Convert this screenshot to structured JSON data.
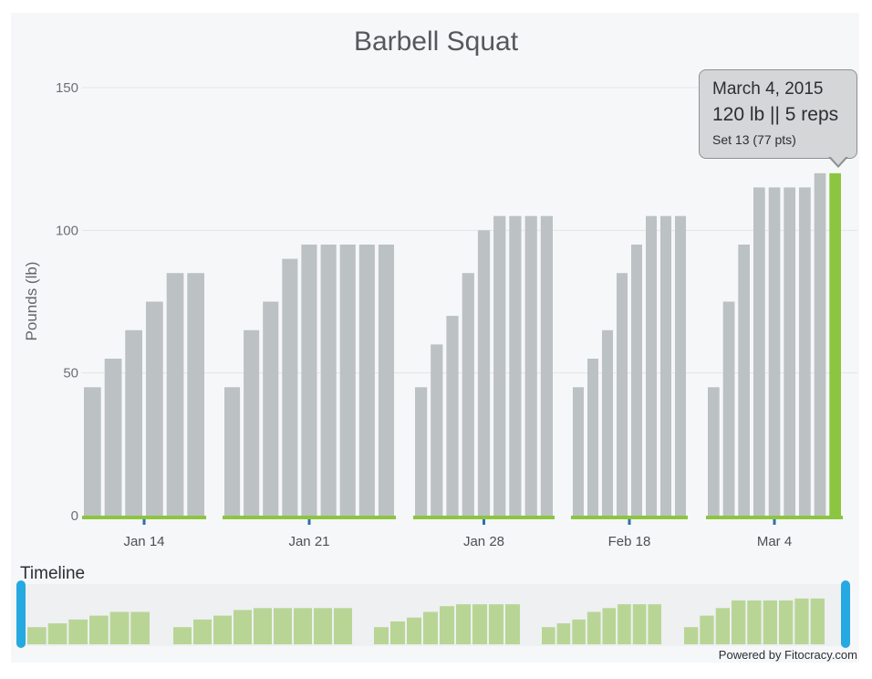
{
  "chart_data": {
    "type": "bar",
    "title": "Barbell Squat",
    "ylabel": "Pounds (lb)",
    "ylim": [
      0,
      150
    ],
    "yticks": [
      0,
      50,
      100,
      150
    ],
    "grid": true,
    "groups": [
      {
        "label": "Jan 14",
        "values": [
          45,
          55,
          65,
          75,
          85,
          85
        ]
      },
      {
        "label": "Jan 21",
        "values": [
          45,
          65,
          75,
          90,
          95,
          95,
          95,
          95,
          95
        ]
      },
      {
        "label": "Jan 28",
        "values": [
          45,
          60,
          70,
          85,
          100,
          105,
          105,
          105,
          105
        ]
      },
      {
        "label": "Feb 18",
        "values": [
          45,
          55,
          65,
          85,
          95,
          105,
          105,
          105
        ]
      },
      {
        "label": "Mar 4",
        "values": [
          45,
          75,
          95,
          115,
          115,
          115,
          115,
          120,
          120
        ]
      }
    ],
    "highlight": {
      "group": 4,
      "set": 8
    },
    "tooltip": {
      "date": "March 4, 2015",
      "weight_reps": "120 lb || 5 reps",
      "set_info": "Set 13 (77 pts)"
    },
    "colors": {
      "bar": "#bcc1c3",
      "highlight": "#8cc540",
      "baseline": "#8cc540",
      "tick": "#2f6fb3",
      "timeline_bar": "#b9d596",
      "handle": "#26a9e0"
    }
  },
  "timeline": {
    "label": "Timeline"
  },
  "footer": {
    "credit": "Powered by Fitocracy.com"
  }
}
